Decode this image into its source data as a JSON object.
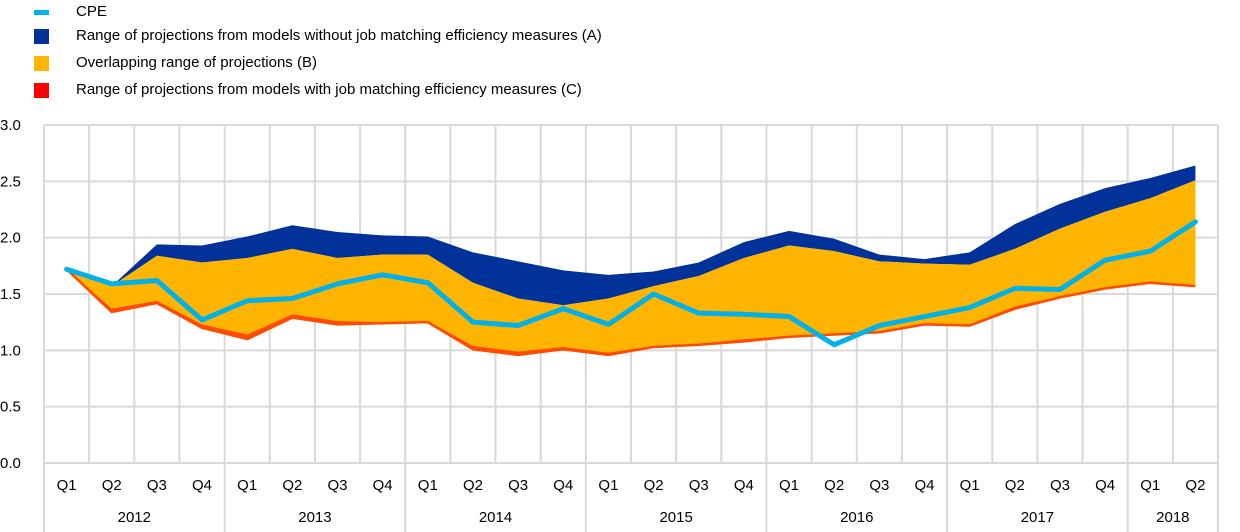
{
  "chart_data": {
    "type": "area",
    "title": "",
    "xlabel": "",
    "ylabel": "",
    "ylim": [
      0.0,
      3.0
    ],
    "yticks": [
      "0.0",
      "0.5",
      "1.0",
      "1.5",
      "2.0",
      "2.5",
      "3.0"
    ],
    "grid": true,
    "legend_position": "top-left",
    "colors": {
      "cpe": "#00B1EA",
      "range_a": "#003299",
      "range_b": "#FFB400",
      "range_c": "#FF4B00",
      "range_c_legend": "#FF0000",
      "grid": "#D9D9D9"
    },
    "legend": [
      {
        "key": "cpe",
        "label": "CPE",
        "shape": "line"
      },
      {
        "key": "range_a",
        "label": "Range of projections from models without job matching efficiency measures (A)",
        "shape": "square"
      },
      {
        "key": "range_b",
        "label": "Overlapping range of projections (B)",
        "shape": "square"
      },
      {
        "key": "range_c_legend",
        "label": "Range of projections from models with job matching efficiency measures (C)",
        "shape": "square"
      }
    ],
    "quarters": [
      "Q1",
      "Q2",
      "Q3",
      "Q4",
      "Q1",
      "Q2",
      "Q3",
      "Q4",
      "Q1",
      "Q2",
      "Q3",
      "Q4",
      "Q1",
      "Q2",
      "Q3",
      "Q4",
      "Q1",
      "Q2",
      "Q3",
      "Q4",
      "Q1",
      "Q2",
      "Q3",
      "Q4",
      "Q1",
      "Q2"
    ],
    "years": [
      {
        "label": "2012",
        "quarters": 4
      },
      {
        "label": "2013",
        "quarters": 4
      },
      {
        "label": "2014",
        "quarters": 4
      },
      {
        "label": "2015",
        "quarters": 4
      },
      {
        "label": "2016",
        "quarters": 4
      },
      {
        "label": "2017",
        "quarters": 4
      },
      {
        "label": "2018",
        "quarters": 2
      }
    ],
    "series": [
      {
        "name": "A upper (range without job matching efficiency)",
        "key": "a_upper",
        "values": [
          1.72,
          1.57,
          1.94,
          1.93,
          2.01,
          2.11,
          2.05,
          2.02,
          2.01,
          1.87,
          1.79,
          1.71,
          1.67,
          1.7,
          1.78,
          1.96,
          2.06,
          1.99,
          1.85,
          1.81,
          1.87,
          2.12,
          2.3,
          2.44,
          2.53,
          2.64
        ]
      },
      {
        "name": "B upper (overlapping range top)",
        "key": "b_upper",
        "values": [
          1.72,
          1.57,
          1.84,
          1.78,
          1.82,
          1.9,
          1.82,
          1.85,
          1.85,
          1.6,
          1.46,
          1.4,
          1.46,
          1.57,
          1.66,
          1.82,
          1.93,
          1.88,
          1.79,
          1.77,
          1.76,
          1.9,
          2.08,
          2.23,
          2.35,
          2.51
        ]
      },
      {
        "name": "B lower (overlapping range bottom)",
        "key": "b_lower",
        "values": [
          1.72,
          1.37,
          1.44,
          1.23,
          1.14,
          1.32,
          1.26,
          1.25,
          1.26,
          1.04,
          0.99,
          1.03,
          0.98,
          1.04,
          1.06,
          1.1,
          1.13,
          1.15,
          1.17,
          1.24,
          1.23,
          1.39,
          1.48,
          1.56,
          1.6,
          1.58
        ]
      },
      {
        "name": "C lower (range with job matching efficiency bottom)",
        "key": "c_lower",
        "values": [
          1.72,
          1.34,
          1.42,
          1.2,
          1.1,
          1.29,
          1.23,
          1.24,
          1.25,
          1.01,
          0.96,
          1.01,
          0.96,
          1.03,
          1.05,
          1.08,
          1.12,
          1.14,
          1.16,
          1.23,
          1.22,
          1.37,
          1.47,
          1.55,
          1.6,
          1.57
        ]
      },
      {
        "name": "CPE",
        "key": "cpe",
        "values": [
          1.72,
          1.59,
          1.62,
          1.27,
          1.44,
          1.46,
          1.59,
          1.67,
          1.6,
          1.25,
          1.22,
          1.37,
          1.23,
          1.5,
          1.33,
          1.32,
          1.3,
          1.05,
          1.22,
          1.3,
          1.38,
          1.55,
          1.54,
          1.8,
          1.88,
          2.14
        ]
      }
    ]
  }
}
